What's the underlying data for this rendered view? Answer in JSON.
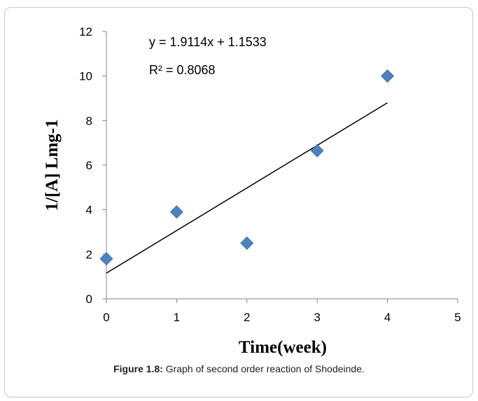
{
  "chart_data": {
    "type": "scatter",
    "xlabel": "Time(week)",
    "ylabel": "1/[A] Lmg-1",
    "xlim": [
      0,
      5
    ],
    "ylim": [
      0,
      12
    ],
    "xticks": [
      "0",
      "1",
      "2",
      "3",
      "4",
      "5"
    ],
    "yticks": [
      "0",
      "2",
      "4",
      "6",
      "8",
      "10",
      "12"
    ],
    "points": {
      "x": [
        0,
        1,
        2,
        3,
        4
      ],
      "y": [
        1.8,
        3.9,
        2.5,
        6.65,
        10.0
      ]
    },
    "marker_color": "#4F81BD",
    "trendline": {
      "slope": 1.9114,
      "intercept": 1.1533,
      "x_start": 0,
      "x_end": 4,
      "color": "#000000"
    },
    "equation_label": "y = 1.9114x + 1.1533",
    "r2_label": "R² = 0.8068",
    "grid": false,
    "legend": "none"
  },
  "caption": {
    "label": "Figure 1.8:",
    "text": " Graph of second order reaction of Shodeinde."
  }
}
